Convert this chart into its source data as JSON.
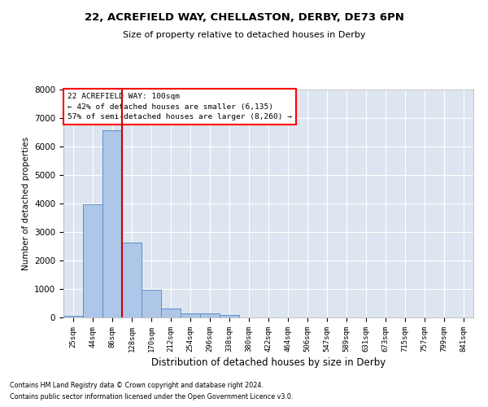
{
  "title": "22, ACREFIELD WAY, CHELLASTON, DERBY, DE73 6PN",
  "subtitle": "Size of property relative to detached houses in Derby",
  "xlabel": "Distribution of detached houses by size in Derby",
  "ylabel": "Number of detached properties",
  "footnote1": "Contains HM Land Registry data © Crown copyright and database right 2024.",
  "footnote2": "Contains public sector information licensed under the Open Government Licence v3.0.",
  "annotation_line1": "22 ACREFIELD WAY: 100sqm",
  "annotation_line2": "← 42% of detached houses are smaller (6,135)",
  "annotation_line3": "57% of semi-detached houses are larger (8,260) →",
  "bar_color": "#aec6e8",
  "bar_edge_color": "#5b8fc9",
  "background_color": "#dde5f0",
  "vline_color": "#cc0000",
  "vline_x_index": 2.5,
  "bin_labels": [
    "25sqm",
    "44sqm",
    "86sqm",
    "128sqm",
    "170sqm",
    "212sqm",
    "254sqm",
    "296sqm",
    "338sqm",
    "380sqm",
    "422sqm",
    "464sqm",
    "506sqm",
    "547sqm",
    "589sqm",
    "631sqm",
    "673sqm",
    "715sqm",
    "757sqm",
    "799sqm",
    "841sqm"
  ],
  "bar_values": [
    70,
    3980,
    6580,
    2630,
    960,
    305,
    130,
    130,
    90,
    0,
    0,
    0,
    0,
    0,
    0,
    0,
    0,
    0,
    0,
    0,
    0
  ],
  "ylim": [
    0,
    8000
  ],
  "yticks": [
    0,
    1000,
    2000,
    3000,
    4000,
    5000,
    6000,
    7000,
    8000
  ],
  "figsize": [
    6.0,
    5.0
  ],
  "dpi": 100
}
